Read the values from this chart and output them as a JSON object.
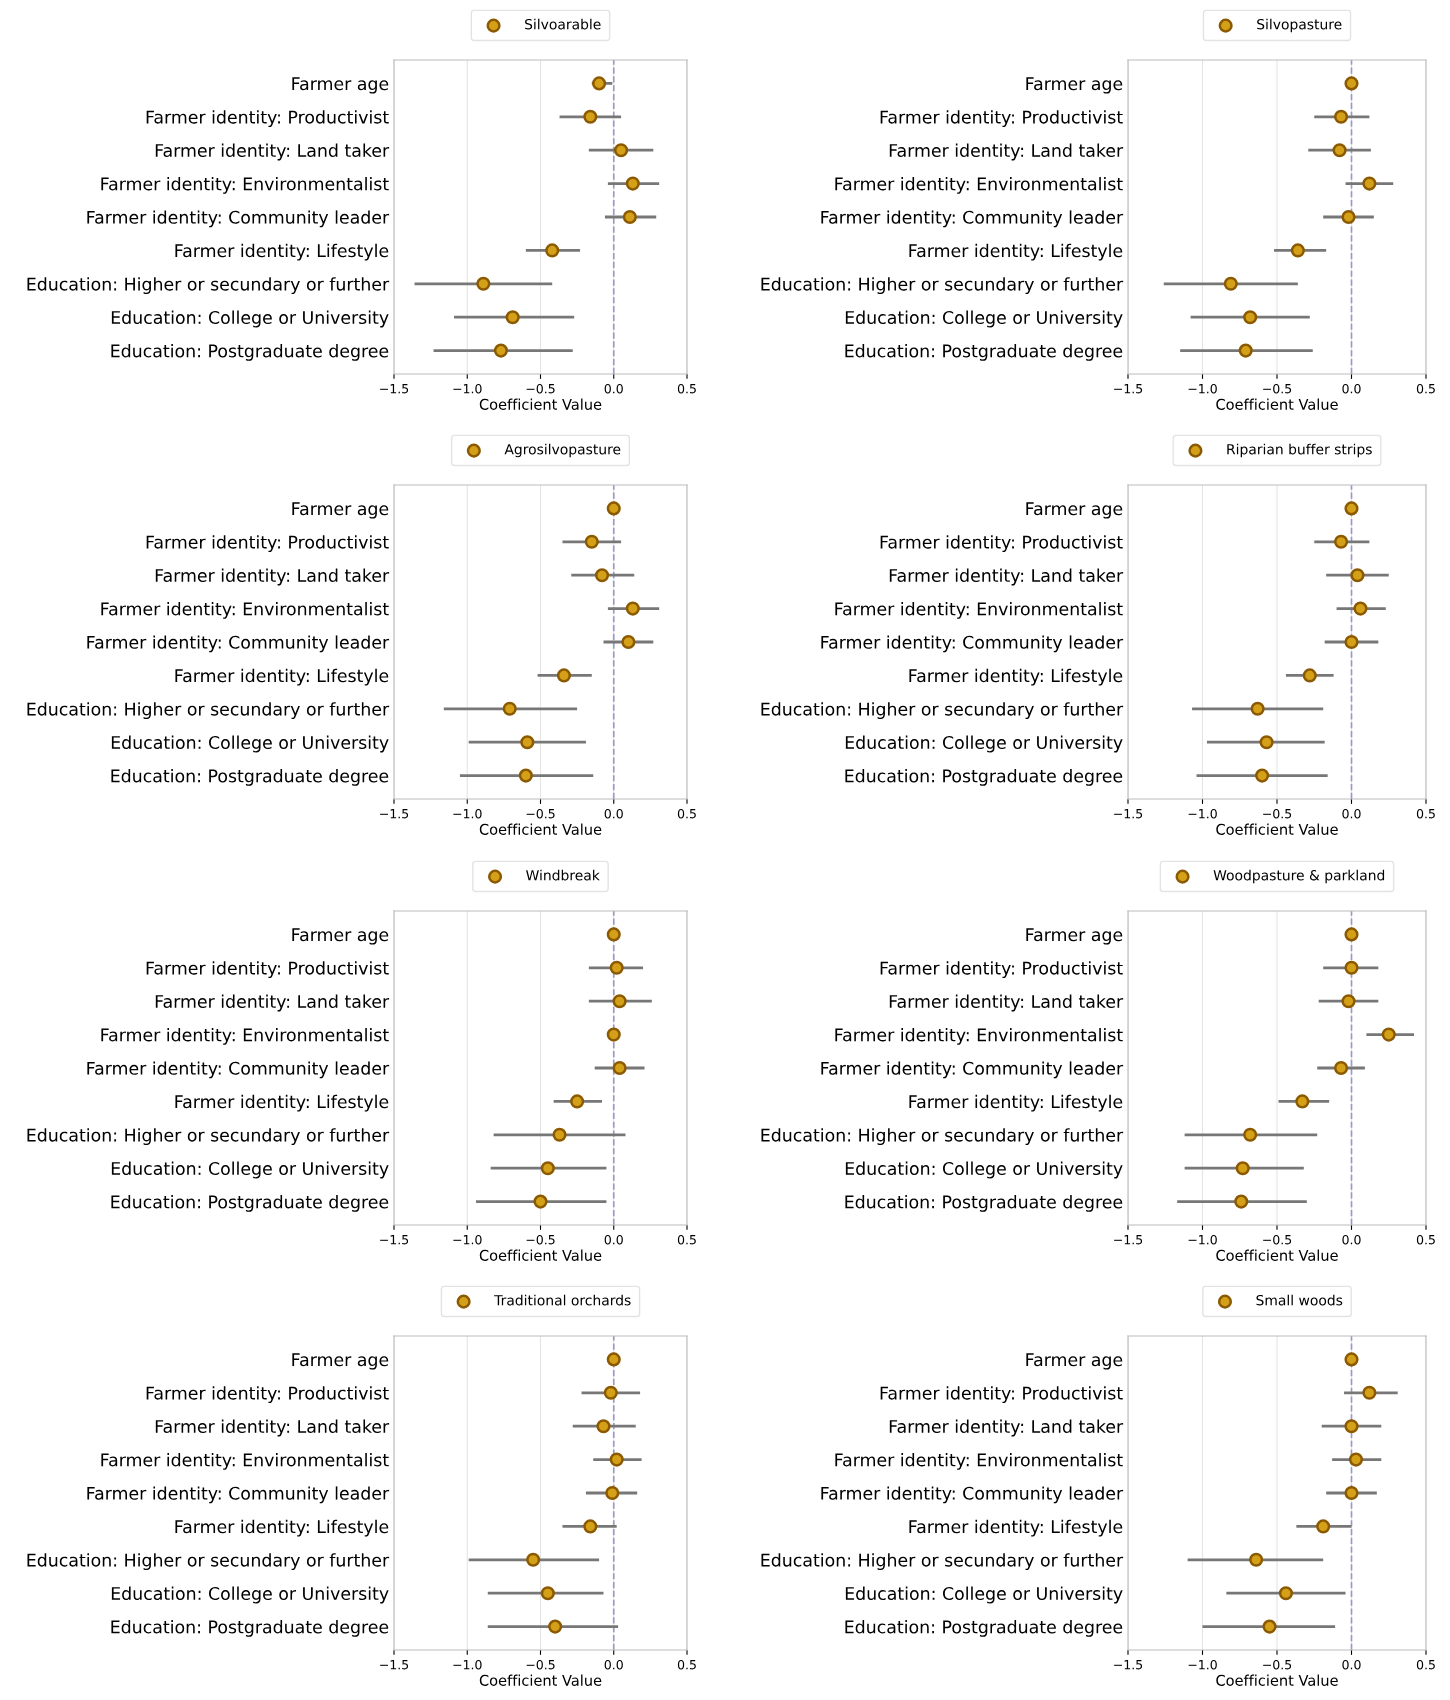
{
  "chart_data": [
    {
      "type": "scatter",
      "orientation": "horizontal",
      "categories": [
        "Farmer age",
        "Farmer identity: Productivist",
        "Farmer identity: Land taker",
        "Farmer identity: Environmentalist",
        "Farmer identity: Community leader",
        "Farmer identity: Lifestyle",
        "Education: Higher or secundary or further",
        "Education: College or University",
        "Education: Postgraduate degree"
      ],
      "xlabel": "Coefficient Value",
      "xlim": [
        -1.5,
        0.5
      ],
      "xticks": [
        {
          "value": -1.5,
          "label": "−1.5"
        },
        {
          "value": -1.0,
          "label": "−1.0"
        },
        {
          "value": -0.5,
          "label": "−0.5"
        },
        {
          "value": 0.0,
          "label": "0.0"
        },
        {
          "value": 0.5,
          "label": "0.5"
        }
      ],
      "grid": "x",
      "legend": "top",
      "marker": "circle",
      "ref_lines": [
        {
          "axis": "x",
          "value": 0,
          "label": null,
          "color": "#9a9ac8",
          "line_style": "dashed"
        }
      ],
      "series": [
        {
          "name": "Silvoarable",
          "color": "#d4a017",
          "values": [
            -0.1,
            -0.16,
            0.05,
            0.13,
            0.11,
            -0.42,
            -0.89,
            -0.69,
            -0.77
          ],
          "errors": [
            [
              -0.15,
              -0.01
            ],
            [
              -0.37,
              0.05
            ],
            [
              -0.17,
              0.27
            ],
            [
              -0.04,
              0.31
            ],
            [
              -0.06,
              0.29
            ],
            [
              -0.6,
              -0.23
            ],
            [
              -1.36,
              -0.42
            ],
            [
              -1.09,
              -0.27
            ],
            [
              -1.23,
              -0.28
            ]
          ]
        }
      ]
    },
    {
      "type": "scatter",
      "orientation": "horizontal",
      "categories": [
        "Farmer age",
        "Farmer identity: Productivist",
        "Farmer identity: Land taker",
        "Farmer identity: Environmentalist",
        "Farmer identity: Community leader",
        "Farmer identity: Lifestyle",
        "Education: Higher or secundary or further",
        "Education: College or University",
        "Education: Postgraduate degree"
      ],
      "xlabel": "Coefficient Value",
      "xlim": [
        -1.5,
        0.5
      ],
      "xticks": [
        {
          "value": -1.5,
          "label": "−1.5"
        },
        {
          "value": -1.0,
          "label": "−1.0"
        },
        {
          "value": -0.5,
          "label": "−0.5"
        },
        {
          "value": 0.0,
          "label": "0.0"
        },
        {
          "value": 0.5,
          "label": "0.5"
        }
      ],
      "grid": "x",
      "legend": "top",
      "marker": "circle",
      "ref_lines": [
        {
          "axis": "x",
          "value": 0,
          "label": null,
          "color": "#9a9ac8",
          "line_style": "dashed"
        }
      ],
      "series": [
        {
          "name": "Silvopasture",
          "color": "#d4a017",
          "values": [
            0.0,
            -0.07,
            -0.08,
            0.12,
            -0.02,
            -0.36,
            -0.81,
            -0.68,
            -0.71
          ],
          "errors": [
            null,
            [
              -0.25,
              0.12
            ],
            [
              -0.29,
              0.13
            ],
            [
              -0.04,
              0.28
            ],
            [
              -0.19,
              0.15
            ],
            [
              -0.52,
              -0.17
            ],
            [
              -1.26,
              -0.36
            ],
            [
              -1.08,
              -0.28
            ],
            [
              -1.15,
              -0.26
            ]
          ]
        }
      ]
    },
    {
      "type": "scatter",
      "orientation": "horizontal",
      "categories": [
        "Farmer age",
        "Farmer identity: Productivist",
        "Farmer identity: Land taker",
        "Farmer identity: Environmentalist",
        "Farmer identity: Community leader",
        "Farmer identity: Lifestyle",
        "Education: Higher or secundary or further",
        "Education: College or University",
        "Education: Postgraduate degree"
      ],
      "xlabel": "Coefficient Value",
      "xlim": [
        -1.5,
        0.5
      ],
      "xticks": [
        {
          "value": -1.5,
          "label": "−1.5"
        },
        {
          "value": -1.0,
          "label": "−1.0"
        },
        {
          "value": -0.5,
          "label": "−0.5"
        },
        {
          "value": 0.0,
          "label": "0.0"
        },
        {
          "value": 0.5,
          "label": "0.5"
        }
      ],
      "grid": "x",
      "legend": "top",
      "marker": "circle",
      "ref_lines": [
        {
          "axis": "x",
          "value": 0,
          "label": null,
          "color": "#9a9ac8",
          "line_style": "dashed"
        }
      ],
      "series": [
        {
          "name": "Agrosilvopasture",
          "color": "#d4a017",
          "values": [
            0.0,
            -0.15,
            -0.08,
            0.13,
            0.1,
            -0.34,
            -0.71,
            -0.59,
            -0.6
          ],
          "errors": [
            null,
            [
              -0.35,
              0.05
            ],
            [
              -0.29,
              0.14
            ],
            [
              -0.04,
              0.31
            ],
            [
              -0.07,
              0.27
            ],
            [
              -0.52,
              -0.15
            ],
            [
              -1.16,
              -0.25
            ],
            [
              -0.99,
              -0.19
            ],
            [
              -1.05,
              -0.14
            ]
          ]
        }
      ]
    },
    {
      "type": "scatter",
      "orientation": "horizontal",
      "categories": [
        "Farmer age",
        "Farmer identity: Productivist",
        "Farmer identity: Land taker",
        "Farmer identity: Environmentalist",
        "Farmer identity: Community leader",
        "Farmer identity: Lifestyle",
        "Education: Higher or secundary or further",
        "Education: College or University",
        "Education: Postgraduate degree"
      ],
      "xlabel": "Coefficient Value",
      "xlim": [
        -1.5,
        0.5
      ],
      "xticks": [
        {
          "value": -1.5,
          "label": "−1.5"
        },
        {
          "value": -1.0,
          "label": "−1.0"
        },
        {
          "value": -0.5,
          "label": "−0.5"
        },
        {
          "value": 0.0,
          "label": "0.0"
        },
        {
          "value": 0.5,
          "label": "0.5"
        }
      ],
      "grid": "x",
      "legend": "top",
      "marker": "circle",
      "ref_lines": [
        {
          "axis": "x",
          "value": 0,
          "label": null,
          "color": "#9a9ac8",
          "line_style": "dashed"
        }
      ],
      "series": [
        {
          "name": "Riparian buffer strips",
          "color": "#d4a017",
          "values": [
            0.0,
            -0.07,
            0.04,
            0.06,
            0.0,
            -0.28,
            -0.63,
            -0.57,
            -0.6
          ],
          "errors": [
            null,
            [
              -0.25,
              0.12
            ],
            [
              -0.17,
              0.25
            ],
            [
              -0.1,
              0.23
            ],
            [
              -0.18,
              0.18
            ],
            [
              -0.44,
              -0.12
            ],
            [
              -1.07,
              -0.19
            ],
            [
              -0.97,
              -0.18
            ],
            [
              -1.04,
              -0.16
            ]
          ]
        }
      ]
    },
    {
      "type": "scatter",
      "orientation": "horizontal",
      "categories": [
        "Farmer age",
        "Farmer identity: Productivist",
        "Farmer identity: Land taker",
        "Farmer identity: Environmentalist",
        "Farmer identity: Community leader",
        "Farmer identity: Lifestyle",
        "Education: Higher or secundary or further",
        "Education: College or University",
        "Education: Postgraduate degree"
      ],
      "xlabel": "Coefficient Value",
      "xlim": [
        -1.5,
        0.5
      ],
      "xticks": [
        {
          "value": -1.5,
          "label": "−1.5"
        },
        {
          "value": -1.0,
          "label": "−1.0"
        },
        {
          "value": -0.5,
          "label": "−0.5"
        },
        {
          "value": 0.0,
          "label": "0.0"
        },
        {
          "value": 0.5,
          "label": "0.5"
        }
      ],
      "grid": "x",
      "legend": "top",
      "marker": "circle",
      "ref_lines": [
        {
          "axis": "x",
          "value": 0,
          "label": null,
          "color": "#9a9ac8",
          "line_style": "dashed"
        }
      ],
      "series": [
        {
          "name": "Windbreak",
          "color": "#d4a017",
          "values": [
            0.0,
            0.02,
            0.04,
            0.0,
            0.04,
            -0.25,
            -0.37,
            -0.45,
            -0.5
          ],
          "errors": [
            null,
            [
              -0.17,
              0.2
            ],
            [
              -0.17,
              0.26
            ],
            null,
            [
              -0.13,
              0.21
            ],
            [
              -0.41,
              -0.08
            ],
            [
              -0.82,
              0.08
            ],
            [
              -0.84,
              -0.05
            ],
            [
              -0.94,
              -0.05
            ]
          ]
        }
      ]
    },
    {
      "type": "scatter",
      "orientation": "horizontal",
      "categories": [
        "Farmer age",
        "Farmer identity: Productivist",
        "Farmer identity: Land taker",
        "Farmer identity: Environmentalist",
        "Farmer identity: Community leader",
        "Farmer identity: Lifestyle",
        "Education: Higher or secundary or further",
        "Education: College or University",
        "Education: Postgraduate degree"
      ],
      "xlabel": "Coefficient Value",
      "xlim": [
        -1.5,
        0.5
      ],
      "xticks": [
        {
          "value": -1.5,
          "label": "−1.5"
        },
        {
          "value": -1.0,
          "label": "−1.0"
        },
        {
          "value": -0.5,
          "label": "−0.5"
        },
        {
          "value": 0.0,
          "label": "0.0"
        },
        {
          "value": 0.5,
          "label": "0.5"
        }
      ],
      "grid": "x",
      "legend": "top",
      "marker": "circle",
      "ref_lines": [
        {
          "axis": "x",
          "value": 0,
          "label": null,
          "color": "#9a9ac8",
          "line_style": "dashed"
        }
      ],
      "series": [
        {
          "name": "Woodpasture & parkland",
          "color": "#d4a017",
          "values": [
            0.0,
            0.0,
            -0.02,
            0.25,
            -0.07,
            -0.33,
            -0.68,
            -0.73,
            -0.74
          ],
          "errors": [
            null,
            [
              -0.19,
              0.18
            ],
            [
              -0.22,
              0.18
            ],
            [
              0.1,
              0.42
            ],
            [
              -0.23,
              0.09
            ],
            [
              -0.49,
              -0.15
            ],
            [
              -1.12,
              -0.23
            ],
            [
              -1.12,
              -0.32
            ],
            [
              -1.17,
              -0.3
            ]
          ]
        }
      ]
    },
    {
      "type": "scatter",
      "orientation": "horizontal",
      "categories": [
        "Farmer age",
        "Farmer identity: Productivist",
        "Farmer identity: Land taker",
        "Farmer identity: Environmentalist",
        "Farmer identity: Community leader",
        "Farmer identity: Lifestyle",
        "Education: Higher or secundary or further",
        "Education: College or University",
        "Education: Postgraduate degree"
      ],
      "xlabel": "Coefficient Value",
      "xlim": [
        -1.5,
        0.5
      ],
      "xticks": [
        {
          "value": -1.5,
          "label": "−1.5"
        },
        {
          "value": -1.0,
          "label": "−1.0"
        },
        {
          "value": -0.5,
          "label": "−0.5"
        },
        {
          "value": 0.0,
          "label": "0.0"
        },
        {
          "value": 0.5,
          "label": "0.5"
        }
      ],
      "grid": "x",
      "legend": "top",
      "marker": "circle",
      "ref_lines": [
        {
          "axis": "x",
          "value": 0,
          "label": null,
          "color": "#9a9ac8",
          "line_style": "dashed"
        }
      ],
      "series": [
        {
          "name": "Traditional orchards",
          "color": "#d4a017",
          "values": [
            0.0,
            -0.02,
            -0.07,
            0.02,
            -0.01,
            -0.16,
            -0.55,
            -0.45,
            -0.4
          ],
          "errors": [
            null,
            [
              -0.22,
              0.18
            ],
            [
              -0.28,
              0.15
            ],
            [
              -0.14,
              0.19
            ],
            [
              -0.19,
              0.16
            ],
            [
              -0.35,
              0.02
            ],
            [
              -0.99,
              -0.1
            ],
            [
              -0.86,
              -0.07
            ],
            [
              -0.86,
              0.03
            ]
          ]
        }
      ]
    },
    {
      "type": "scatter",
      "orientation": "horizontal",
      "categories": [
        "Farmer age",
        "Farmer identity: Productivist",
        "Farmer identity: Land taker",
        "Farmer identity: Environmentalist",
        "Farmer identity: Community leader",
        "Farmer identity: Lifestyle",
        "Education: Higher or secundary or further",
        "Education: College or University",
        "Education: Postgraduate degree"
      ],
      "xlabel": "Coefficient Value",
      "xlim": [
        -1.5,
        0.5
      ],
      "xticks": [
        {
          "value": -1.5,
          "label": "−1.5"
        },
        {
          "value": -1.0,
          "label": "−1.0"
        },
        {
          "value": -0.5,
          "label": "−0.5"
        },
        {
          "value": 0.0,
          "label": "0.0"
        },
        {
          "value": 0.5,
          "label": "0.5"
        }
      ],
      "grid": "x",
      "legend": "top",
      "marker": "circle",
      "ref_lines": [
        {
          "axis": "x",
          "value": 0,
          "label": null,
          "color": "#9a9ac8",
          "line_style": "dashed"
        }
      ],
      "series": [
        {
          "name": "Small woods",
          "color": "#d4a017",
          "values": [
            0.0,
            0.12,
            0.0,
            0.03,
            0.0,
            -0.19,
            -0.64,
            -0.44,
            -0.55
          ],
          "errors": [
            null,
            [
              -0.05,
              0.31
            ],
            [
              -0.2,
              0.2
            ],
            [
              -0.13,
              0.2
            ],
            [
              -0.17,
              0.17
            ],
            [
              -0.37,
              0.0
            ],
            [
              -1.1,
              -0.19
            ],
            [
              -0.84,
              -0.04
            ],
            [
              -1.0,
              -0.11
            ]
          ]
        }
      ]
    }
  ]
}
